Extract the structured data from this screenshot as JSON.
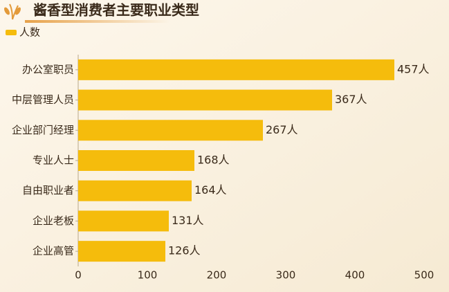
{
  "chart_data": {
    "type": "bar",
    "orientation": "horizontal",
    "title": "酱香型消费者主要职业类型",
    "categories": [
      "办公室职员",
      "中层管理人员",
      "企业部门经理",
      "专业人士",
      "自由职业者",
      "企业老板",
      "企业高管"
    ],
    "series": [
      {
        "name": "人数",
        "color": "#f5bc0c",
        "values": [
          457,
          367,
          267,
          168,
          164,
          131,
          126
        ],
        "value_labels": [
          "457人",
          "367人",
          "267人",
          "168人",
          "164人",
          "131人",
          "126人"
        ]
      }
    ],
    "xlim": [
      0,
      500
    ],
    "xticks": [
      0,
      100,
      200,
      300,
      400,
      500
    ],
    "legend": "top-left",
    "grid": false
  }
}
